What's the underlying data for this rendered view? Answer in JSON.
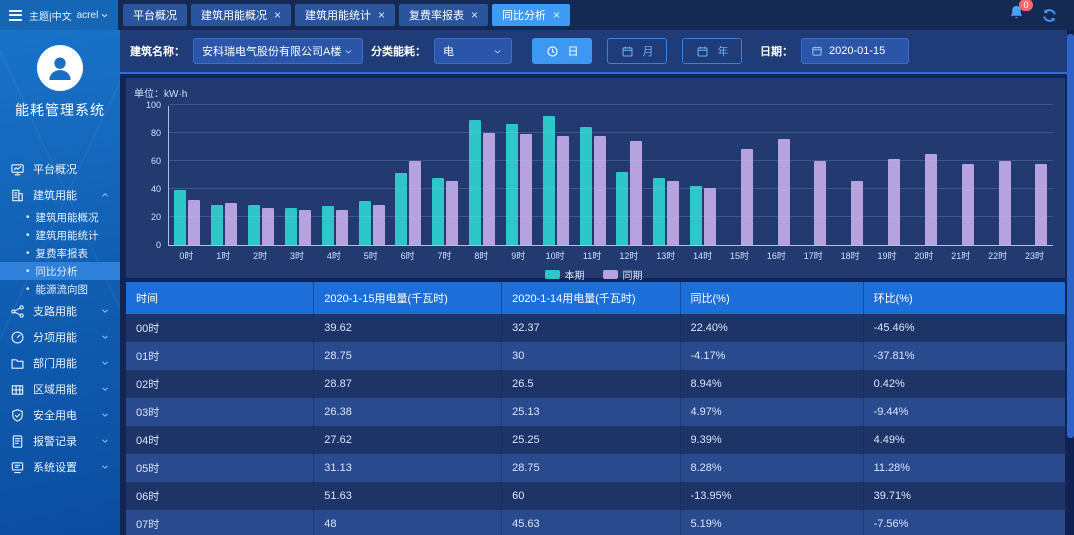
{
  "topbar": {
    "theme_label": "主题|中文",
    "user": "acrel",
    "tabs": [
      {
        "label": "平台概况",
        "closable": false,
        "active": false
      },
      {
        "label": "建筑用能概况",
        "closable": true,
        "active": false
      },
      {
        "label": "建筑用能统计",
        "closable": true,
        "active": false
      },
      {
        "label": "复费率报表",
        "closable": true,
        "active": false
      },
      {
        "label": "同比分析",
        "closable": true,
        "active": true
      }
    ],
    "badge_count": "0"
  },
  "sidebar": {
    "app_title": "能耗管理系统",
    "items": [
      {
        "label": "平台概况",
        "icon": "monitor-icon",
        "collapsible": false
      },
      {
        "label": "建筑用能",
        "icon": "building-icon",
        "collapsible": true,
        "expanded": true,
        "children": [
          {
            "label": "建筑用能概况",
            "active": false
          },
          {
            "label": "建筑用能统计",
            "active": false
          },
          {
            "label": "复费率报表",
            "active": false
          },
          {
            "label": "同比分析",
            "active": true
          },
          {
            "label": "能源流向图",
            "active": false
          }
        ]
      },
      {
        "label": "支路用能",
        "icon": "branch-icon",
        "collapsible": true,
        "expanded": false
      },
      {
        "label": "分项用能",
        "icon": "gauge-icon",
        "collapsible": true,
        "expanded": false
      },
      {
        "label": "部门用能",
        "icon": "folder-icon",
        "collapsible": true,
        "expanded": false
      },
      {
        "label": "区域用能",
        "icon": "region-icon",
        "collapsible": true,
        "expanded": false
      },
      {
        "label": "安全用电",
        "icon": "shield-icon",
        "collapsible": true,
        "expanded": false
      },
      {
        "label": "报警记录",
        "icon": "report-icon",
        "collapsible": true,
        "expanded": false
      },
      {
        "label": "系统设置",
        "icon": "settings-icon",
        "collapsible": true,
        "expanded": false
      }
    ]
  },
  "filters": {
    "building_label": "建筑名称：",
    "building_value": "安科瑞电气股份有限公司A楼",
    "energy_label": "分类能耗：",
    "energy_value": "电",
    "day_label": "日",
    "month_label": "月",
    "year_label": "年",
    "date_label": "日期：",
    "date_value": "2020-01-15"
  },
  "chart_data": {
    "type": "bar",
    "title": "",
    "unit_label": "单位：kW·h",
    "categories": [
      "0时",
      "1时",
      "2时",
      "3时",
      "4时",
      "5时",
      "6时",
      "7时",
      "8时",
      "9时",
      "10时",
      "11时",
      "12时",
      "13时",
      "14时",
      "15时",
      "16时",
      "17时",
      "18时",
      "19时",
      "20时",
      "21时",
      "22时",
      "23时"
    ],
    "series": [
      {
        "name": "本期",
        "color": "#2ec7c9",
        "values": [
          39.62,
          28.75,
          28.87,
          26.38,
          27.62,
          31.13,
          51.63,
          48,
          89,
          86.5,
          92.5,
          84,
          52,
          48,
          42,
          null,
          null,
          null,
          null,
          null,
          null,
          null,
          null,
          null
        ]
      },
      {
        "name": "同期",
        "color": "#b6a2de",
        "values": [
          32.37,
          30,
          26.5,
          25.13,
          25.25,
          28.75,
          60,
          45.63,
          80,
          79.5,
          78,
          78,
          74.5,
          46,
          41,
          68.5,
          76,
          60,
          46,
          61.5,
          65,
          58,
          60,
          58
        ]
      }
    ],
    "ylim": [
      0,
      100
    ],
    "yticks": [
      0,
      20,
      40,
      60,
      80,
      100
    ],
    "legend_position": "bottom",
    "grid": true
  },
  "table": {
    "headers": [
      "时间",
      "2020-1-15用电量(千瓦时)",
      "2020-1-14用电量(千瓦时)",
      "同比(%)",
      "环比(%)"
    ],
    "rows": [
      [
        "00时",
        "39.62",
        "32.37",
        "22.40%",
        "-45.46%"
      ],
      [
        "01时",
        "28.75",
        "30",
        "-4.17%",
        "-37.81%"
      ],
      [
        "02时",
        "28.87",
        "26.5",
        "8.94%",
        "0.42%"
      ],
      [
        "03时",
        "26.38",
        "25.13",
        "4.97%",
        "-9.44%"
      ],
      [
        "04时",
        "27.62",
        "25.25",
        "9.39%",
        "4.49%"
      ],
      [
        "05时",
        "31.13",
        "28.75",
        "8.28%",
        "11.28%"
      ],
      [
        "06时",
        "51.63",
        "60",
        "-13.95%",
        "39.71%"
      ],
      [
        "07时",
        "48",
        "45.63",
        "5.19%",
        "-7.56%"
      ]
    ]
  },
  "colors": {
    "accent": "#3e9bf5",
    "series_current": "#2ec7c9",
    "series_previous": "#b6a2de",
    "table_header": "#1c6ed8",
    "badge": "#ef6a6e"
  }
}
